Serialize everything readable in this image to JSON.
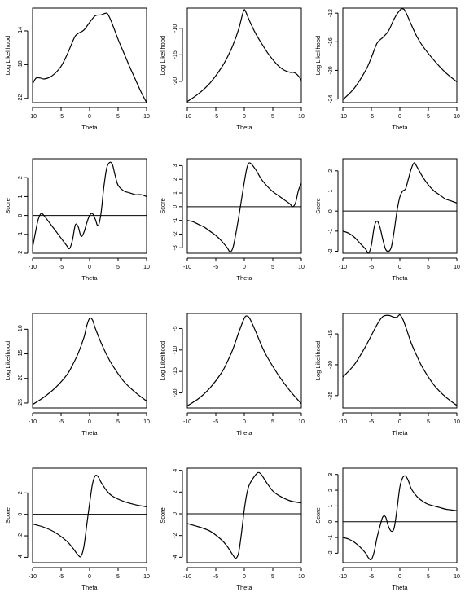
{
  "chart_data": [
    {
      "type": "line",
      "xlabel": "Theta",
      "ylabel": "Log Likelihood",
      "xlim": [
        -10,
        10
      ],
      "ylim": [
        -22.5,
        -11.3
      ],
      "xticks": [
        -10,
        -5,
        0,
        5,
        10
      ],
      "yticks": [
        -22,
        -18,
        -14
      ],
      "zero_line": false,
      "x": [
        -10,
        -9.4,
        -8.6,
        -8,
        -7,
        -6,
        -5,
        -4,
        -3,
        -2.5,
        -2,
        -1,
        0,
        1,
        2,
        3,
        3.5,
        4,
        5,
        6,
        7,
        8,
        9,
        10
      ],
      "y": [
        -20.3,
        -19.6,
        -19.6,
        -19.7,
        -19.5,
        -19.0,
        -18.2,
        -16.9,
        -15.3,
        -14.6,
        -14.3,
        -13.9,
        -13.0,
        -12.2,
        -12.1,
        -11.9,
        -12.4,
        -13.2,
        -15.0,
        -16.6,
        -18.2,
        -19.7,
        -21.2,
        -22.5
      ]
    },
    {
      "type": "line",
      "xlabel": "Theta",
      "ylabel": "Log Likelihood",
      "xlim": [
        -10,
        10
      ],
      "ylim": [
        -24,
        -6.2
      ],
      "xticks": [
        -10,
        -5,
        0,
        5,
        10
      ],
      "yticks": [
        -20,
        -15,
        -10
      ],
      "zero_line": false,
      "x": [
        -10,
        -8,
        -6,
        -4,
        -3,
        -2,
        -1,
        -0.3,
        0,
        0.3,
        1,
        2,
        3,
        4,
        5,
        6,
        7,
        8,
        8.6,
        9,
        9.5,
        10
      ],
      "y": [
        -23.8,
        -22.3,
        -20.3,
        -17.4,
        -15.5,
        -13.2,
        -10.2,
        -7.3,
        -6.5,
        -7.0,
        -8.8,
        -11.0,
        -12.8,
        -14.5,
        -15.9,
        -17.1,
        -17.9,
        -18.3,
        -18.3,
        -18.5,
        -19.0,
        -19.8
      ]
    },
    {
      "type": "line",
      "xlabel": "Theta",
      "ylabel": "Log Likelihood",
      "xlim": [
        -10,
        10
      ],
      "ylim": [
        -24.5,
        -11.3
      ],
      "xticks": [
        -10,
        -5,
        0,
        5,
        10
      ],
      "yticks": [
        -24,
        -20,
        -16,
        -12
      ],
      "zero_line": false,
      "x": [
        -10,
        -8,
        -6,
        -5,
        -4,
        -3,
        -2,
        -1,
        0,
        0.5,
        1,
        2,
        3,
        4,
        6,
        8,
        10
      ],
      "y": [
        -24.1,
        -22.5,
        -20.0,
        -18.2,
        -16.2,
        -15.4,
        -14.5,
        -12.8,
        -11.6,
        -11.4,
        -11.8,
        -13.6,
        -15.3,
        -16.6,
        -18.6,
        -20.3,
        -21.6
      ]
    },
    {
      "type": "line",
      "xlabel": "Theta",
      "ylabel": "Score",
      "xlim": [
        -10,
        10
      ],
      "ylim": [
        -2,
        3
      ],
      "xticks": [
        -10,
        -5,
        0,
        5,
        10
      ],
      "yticks": [
        -2,
        -1,
        0,
        1,
        2
      ],
      "zero_line": true,
      "x": [
        -10,
        -9.5,
        -9,
        -8.5,
        -8,
        -7,
        -6,
        -5,
        -4,
        -3.5,
        -3,
        -2.5,
        -2,
        -1.5,
        -1,
        -0.5,
        0,
        0.5,
        1,
        1.5,
        2,
        2.5,
        3,
        3.5,
        4,
        4.5,
        5,
        6,
        7,
        8,
        9,
        10
      ],
      "y": [
        -1.7,
        -0.9,
        -0.2,
        0.1,
        0.0,
        -0.4,
        -0.8,
        -1.2,
        -1.6,
        -1.75,
        -1.3,
        -0.5,
        -0.6,
        -1.1,
        -0.9,
        -0.4,
        0.0,
        0.1,
        -0.2,
        -0.55,
        0.1,
        1.5,
        2.5,
        2.8,
        2.7,
        2.1,
        1.6,
        1.3,
        1.2,
        1.1,
        1.1,
        1.0
      ]
    },
    {
      "type": "line",
      "xlabel": "Theta",
      "ylabel": "Score",
      "xlim": [
        -10,
        10
      ],
      "ylim": [
        -3.4,
        3.5
      ],
      "xticks": [
        -10,
        -5,
        0,
        5,
        10
      ],
      "yticks": [
        -3,
        -2,
        -1,
        0,
        1,
        2,
        3
      ],
      "zero_line": true,
      "x": [
        -10,
        -9,
        -8,
        -7,
        -6,
        -5,
        -4,
        -3,
        -2.5,
        -2,
        -1.5,
        -1,
        -0.5,
        0,
        0.5,
        1,
        2,
        3,
        4,
        5,
        6,
        7,
        8,
        8.5,
        9,
        9.5,
        10
      ],
      "y": [
        -1.0,
        -1.1,
        -1.3,
        -1.5,
        -1.8,
        -2.1,
        -2.5,
        -3.0,
        -3.3,
        -3.0,
        -2.0,
        -0.8,
        0.5,
        1.8,
        2.9,
        3.2,
        2.7,
        2.0,
        1.5,
        1.1,
        0.8,
        0.5,
        0.2,
        0.0,
        0.3,
        1.2,
        1.7
      ]
    },
    {
      "type": "line",
      "xlabel": "Theta",
      "ylabel": "Score",
      "xlim": [
        -10,
        10
      ],
      "ylim": [
        -2.1,
        2.6
      ],
      "xticks": [
        -10,
        -5,
        0,
        5,
        10
      ],
      "yticks": [
        -2,
        -1,
        0,
        1,
        2
      ],
      "zero_line": true,
      "x": [
        -10,
        -9,
        -8,
        -7,
        -6,
        -5.5,
        -5,
        -4.5,
        -4,
        -3.5,
        -3,
        -2.5,
        -2,
        -1.5,
        -1,
        -0.5,
        0,
        0.5,
        1,
        1.5,
        2,
        2.5,
        3,
        4,
        5,
        6,
        7,
        8,
        9,
        10
      ],
      "y": [
        -1.0,
        -1.1,
        -1.3,
        -1.6,
        -1.9,
        -2.1,
        -1.7,
        -0.8,
        -0.5,
        -0.8,
        -1.4,
        -1.9,
        -2.0,
        -1.8,
        -1.0,
        0.0,
        0.7,
        1.0,
        1.1,
        1.6,
        2.1,
        2.4,
        2.2,
        1.7,
        1.3,
        1.0,
        0.8,
        0.6,
        0.5,
        0.4
      ]
    },
    {
      "type": "line",
      "xlabel": "Theta",
      "ylabel": "Log Likelihood",
      "xlim": [
        -10,
        10
      ],
      "ylim": [
        -26,
        -6.8
      ],
      "xticks": [
        -10,
        -5,
        0,
        5,
        10
      ],
      "yticks": [
        -25,
        -20,
        -15,
        -10
      ],
      "zero_line": false,
      "x": [
        -10,
        -8,
        -6,
        -4,
        -3,
        -2,
        -1,
        -0.5,
        0,
        0.5,
        1,
        2,
        3,
        4,
        6,
        8,
        10
      ],
      "y": [
        -25.3,
        -23.8,
        -21.9,
        -19.3,
        -17.3,
        -14.9,
        -11.7,
        -9.3,
        -7.8,
        -8.1,
        -9.8,
        -12.7,
        -15.2,
        -17.3,
        -20.6,
        -22.8,
        -24.6
      ]
    },
    {
      "type": "line",
      "xlabel": "Theta",
      "ylabel": "Log Likelihood",
      "xlim": [
        -10,
        10
      ],
      "ylim": [
        -23.5,
        -1.5
      ],
      "xticks": [
        -10,
        -5,
        0,
        5,
        10
      ],
      "yticks": [
        -20,
        -15,
        -10,
        -5
      ],
      "zero_line": false,
      "x": [
        -10,
        -8,
        -6,
        -4,
        -3,
        -2,
        -1,
        0,
        0.5,
        1,
        2,
        3,
        4,
        6,
        8,
        10
      ],
      "y": [
        -23.0,
        -21.3,
        -18.8,
        -15.3,
        -12.8,
        -9.8,
        -6.0,
        -2.6,
        -2.1,
        -2.8,
        -5.7,
        -8.9,
        -11.6,
        -15.9,
        -19.5,
        -22.5
      ]
    },
    {
      "type": "line",
      "xlabel": "Theta",
      "ylabel": "Log Likelihood",
      "xlim": [
        -10,
        10
      ],
      "ylim": [
        -27,
        -11.7
      ],
      "xticks": [
        -10,
        -5,
        0,
        5,
        10
      ],
      "yticks": [
        -25,
        -20,
        -15
      ],
      "zero_line": false,
      "x": [
        -10,
        -8,
        -6,
        -4,
        -3,
        -2,
        -1,
        -0.5,
        0,
        0.5,
        1,
        2,
        3,
        4,
        6,
        8,
        10
      ],
      "y": [
        -22.0,
        -20.0,
        -17.0,
        -13.5,
        -12.2,
        -12.0,
        -12.3,
        -12.3,
        -11.9,
        -12.6,
        -13.8,
        -16.5,
        -18.6,
        -20.5,
        -23.3,
        -25.2,
        -26.6
      ]
    },
    {
      "type": "line",
      "xlabel": "Theta",
      "ylabel": "Score",
      "xlim": [
        -10,
        10
      ],
      "ylim": [
        -4.5,
        4.3
      ],
      "xticks": [
        -10,
        -5,
        0,
        5,
        10
      ],
      "yticks": [
        -4,
        -2,
        0,
        2
      ],
      "zero_line": true,
      "x": [
        -10,
        -8,
        -6,
        -4,
        -3,
        -2,
        -1.5,
        -1,
        -0.5,
        0,
        0.5,
        1,
        1.5,
        2,
        3,
        4,
        6,
        8,
        10
      ],
      "y": [
        -0.9,
        -1.2,
        -1.7,
        -2.5,
        -3.1,
        -3.8,
        -3.9,
        -3.0,
        -1.0,
        1.0,
        2.8,
        3.6,
        3.5,
        3.0,
        2.2,
        1.7,
        1.2,
        0.9,
        0.7
      ]
    },
    {
      "type": "line",
      "xlabel": "Theta",
      "ylabel": "Score",
      "xlim": [
        -10,
        10
      ],
      "ylim": [
        -4.5,
        4.2
      ],
      "xticks": [
        -10,
        -5,
        0,
        5,
        10
      ],
      "yticks": [
        -4,
        -2,
        0,
        2,
        4
      ],
      "zero_line": true,
      "x": [
        -10,
        -8,
        -6,
        -4,
        -3,
        -2,
        -1.5,
        -1,
        -0.5,
        0,
        0.5,
        1,
        2,
        2.5,
        3,
        4,
        5,
        6,
        8,
        10
      ],
      "y": [
        -0.9,
        -1.2,
        -1.6,
        -2.4,
        -3.0,
        -3.8,
        -4.1,
        -3.6,
        -1.8,
        0.4,
        2.0,
        2.8,
        3.6,
        3.8,
        3.6,
        2.8,
        2.1,
        1.7,
        1.2,
        1.0
      ]
    },
    {
      "type": "line",
      "xlabel": "Theta",
      "ylabel": "Score",
      "xlim": [
        -10,
        10
      ],
      "ylim": [
        -2.6,
        3.4
      ],
      "xticks": [
        -10,
        -5,
        0,
        5,
        10
      ],
      "yticks": [
        -2,
        -1,
        0,
        1,
        2,
        3
      ],
      "zero_line": true,
      "x": [
        -10,
        -9,
        -8,
        -7,
        -6,
        -5.5,
        -5,
        -4.5,
        -4,
        -3.5,
        -3,
        -2.5,
        -2,
        -1.5,
        -1,
        -0.5,
        0,
        0.5,
        1,
        1.5,
        2,
        3,
        4,
        5,
        6,
        7,
        8,
        9,
        10
      ],
      "y": [
        -1.0,
        -1.1,
        -1.3,
        -1.6,
        -2.0,
        -2.3,
        -2.4,
        -1.9,
        -1.0,
        -0.3,
        0.3,
        0.3,
        -0.3,
        -0.6,
        -0.4,
        0.8,
        2.2,
        2.8,
        2.9,
        2.6,
        2.1,
        1.6,
        1.3,
        1.1,
        1.0,
        0.9,
        0.8,
        0.75,
        0.7
      ]
    }
  ]
}
